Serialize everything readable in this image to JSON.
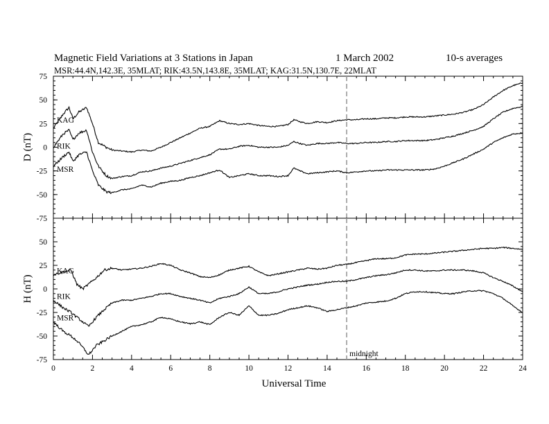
{
  "header": {
    "title": "Magnetic Field Variations at 3 Stations in Japan",
    "date": "1   March   2002",
    "averaging": "10-s averages",
    "stations": "MSR:44.4N,142.3E, 35MLAT;   RIK:43.5N,143.8E, 35MLAT;   KAG:31.5N,130.7E, 22MLAT"
  },
  "chart_data": [
    {
      "type": "line",
      "panel": "D",
      "ylabel": "D (nT)",
      "ylim": [
        -75,
        75
      ],
      "yticks": [
        "75",
        "50",
        "25",
        "0",
        "-25",
        "-50",
        "-75"
      ],
      "x": [
        0,
        0.5,
        0.8,
        1.0,
        1.3,
        1.7,
        2.0,
        2.3,
        2.7,
        3.0,
        3.5,
        4.0,
        4.5,
        5.0,
        5.5,
        6.0,
        6.5,
        7.0,
        7.5,
        8.0,
        8.5,
        9.0,
        9.5,
        10.0,
        10.5,
        11.0,
        11.5,
        12.0,
        12.3,
        12.6,
        13.0,
        13.5,
        14.0,
        14.5,
        15.0,
        15.5,
        16.0,
        16.5,
        17.0,
        17.5,
        18.0,
        18.5,
        19.0,
        19.5,
        20.0,
        20.5,
        21.0,
        21.5,
        22.0,
        22.5,
        23.0,
        23.5,
        24.0
      ],
      "series": [
        {
          "name": "KAG",
          "values": [
            20,
            35,
            42,
            30,
            37,
            42,
            25,
            5,
            0,
            -3,
            -4,
            -5,
            -3,
            -4,
            0,
            5,
            10,
            15,
            20,
            22,
            28,
            25,
            24,
            25,
            23,
            22,
            22,
            24,
            29,
            27,
            25,
            27,
            26,
            28,
            29,
            29,
            30,
            30,
            31,
            31,
            32,
            32,
            32,
            33,
            34,
            35,
            37,
            40,
            45,
            53,
            60,
            65,
            68
          ]
        },
        {
          "name": "RIK",
          "values": [
            0,
            14,
            18,
            8,
            15,
            18,
            -5,
            -20,
            -30,
            -33,
            -31,
            -30,
            -26,
            -25,
            -22,
            -20,
            -17,
            -14,
            -11,
            -8,
            -2,
            -2,
            1,
            2,
            0,
            0,
            0,
            2,
            6,
            4,
            2,
            4,
            4,
            5,
            4,
            4,
            5,
            5,
            6,
            6,
            7,
            7,
            7,
            8,
            10,
            12,
            15,
            18,
            22,
            30,
            37,
            41,
            43
          ]
        },
        {
          "name": "MSR",
          "values": [
            -20,
            -10,
            -5,
            -15,
            -8,
            -5,
            -25,
            -40,
            -47,
            -48,
            -45,
            -44,
            -40,
            -42,
            -38,
            -36,
            -35,
            -32,
            -30,
            -27,
            -24,
            -32,
            -30,
            -28,
            -30,
            -30,
            -31,
            -30,
            -22,
            -25,
            -28,
            -27,
            -26,
            -25,
            -27,
            -26,
            -25,
            -25,
            -24,
            -24,
            -24,
            -24,
            -24,
            -23,
            -20,
            -16,
            -12,
            -7,
            -2,
            5,
            10,
            14,
            15
          ]
        }
      ]
    },
    {
      "type": "line",
      "panel": "H",
      "ylabel": "H (nT)",
      "xlabel": "Universal Time",
      "ylim": [
        -75,
        75
      ],
      "yticks": [
        "50",
        "25",
        "0",
        "-25",
        "-50",
        "-75"
      ],
      "xlim": [
        0,
        24
      ],
      "xticks": [
        "0",
        "2",
        "4",
        "6",
        "8",
        "10",
        "12",
        "14",
        "16",
        "18",
        "20",
        "22",
        "24"
      ],
      "x": [
        0,
        0.5,
        0.9,
        1.2,
        1.5,
        1.8,
        2.2,
        2.6,
        3.0,
        3.5,
        4.0,
        4.5,
        5.0,
        5.5,
        6.0,
        6.5,
        7.0,
        7.5,
        8.0,
        8.5,
        9.0,
        9.5,
        10.0,
        10.5,
        11.0,
        11.5,
        12.0,
        12.5,
        13.0,
        13.5,
        14.0,
        14.5,
        15.0,
        15.5,
        16.0,
        16.5,
        17.0,
        17.5,
        18.0,
        18.5,
        19.0,
        19.5,
        20.0,
        20.5,
        21.0,
        21.5,
        22.0,
        22.5,
        23.0,
        23.5,
        24.0
      ],
      "series": [
        {
          "name": "KAG",
          "values": [
            15,
            18,
            20,
            5,
            0,
            5,
            12,
            20,
            22,
            20,
            21,
            22,
            24,
            27,
            25,
            20,
            17,
            13,
            12,
            15,
            20,
            22,
            24,
            18,
            14,
            16,
            18,
            20,
            22,
            21,
            22,
            25,
            26,
            28,
            30,
            32,
            32,
            33,
            36,
            37,
            37,
            38,
            39,
            40,
            41,
            42,
            43,
            43,
            44,
            43,
            42
          ]
        },
        {
          "name": "RIK",
          "values": [
            -12,
            -20,
            -25,
            -30,
            -35,
            -40,
            -30,
            -22,
            -15,
            -12,
            -12,
            -10,
            -8,
            -5,
            -5,
            -8,
            -10,
            -12,
            -15,
            -10,
            -8,
            -5,
            2,
            -5,
            -5,
            -3,
            0,
            2,
            4,
            5,
            7,
            8,
            8,
            10,
            12,
            14,
            15,
            17,
            20,
            20,
            19,
            19,
            20,
            20,
            20,
            19,
            17,
            12,
            8,
            3,
            -3
          ]
        },
        {
          "name": "MSR",
          "values": [
            -35,
            -45,
            -50,
            -55,
            -62,
            -70,
            -60,
            -55,
            -50,
            -45,
            -40,
            -38,
            -35,
            -30,
            -32,
            -35,
            -37,
            -35,
            -38,
            -30,
            -25,
            -28,
            -18,
            -28,
            -28,
            -26,
            -22,
            -20,
            -18,
            -20,
            -24,
            -22,
            -20,
            -18,
            -15,
            -14,
            -13,
            -10,
            -5,
            -3,
            -3,
            -4,
            -5,
            -5,
            -3,
            -2,
            -2,
            -5,
            -10,
            -18,
            -25
          ]
        }
      ],
      "annotations": [
        {
          "text": "midnight",
          "x": 15
        }
      ]
    }
  ]
}
